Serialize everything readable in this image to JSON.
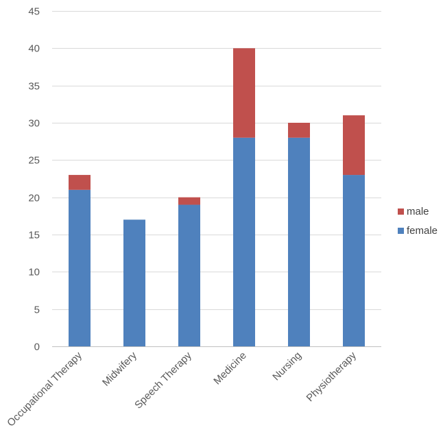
{
  "chart_data": {
    "type": "bar",
    "stacked": true,
    "title": "",
    "xlabel": "",
    "ylabel": "",
    "ylim": [
      0,
      45
    ],
    "ytick_step": 5,
    "grid": true,
    "legend_position": "right",
    "categories": [
      "Occupational Therapy",
      "Midwifery",
      "Speech Therapy",
      "Medicine",
      "Nursing",
      "Physiotherapy"
    ],
    "series": [
      {
        "name": "female",
        "color": "#4f81bd",
        "values": [
          21,
          17,
          19,
          28,
          28,
          23
        ]
      },
      {
        "name": "male",
        "color": "#c0504d",
        "values": [
          2,
          0,
          1,
          12,
          2,
          8
        ]
      }
    ],
    "legend_order": [
      "male",
      "female"
    ]
  }
}
